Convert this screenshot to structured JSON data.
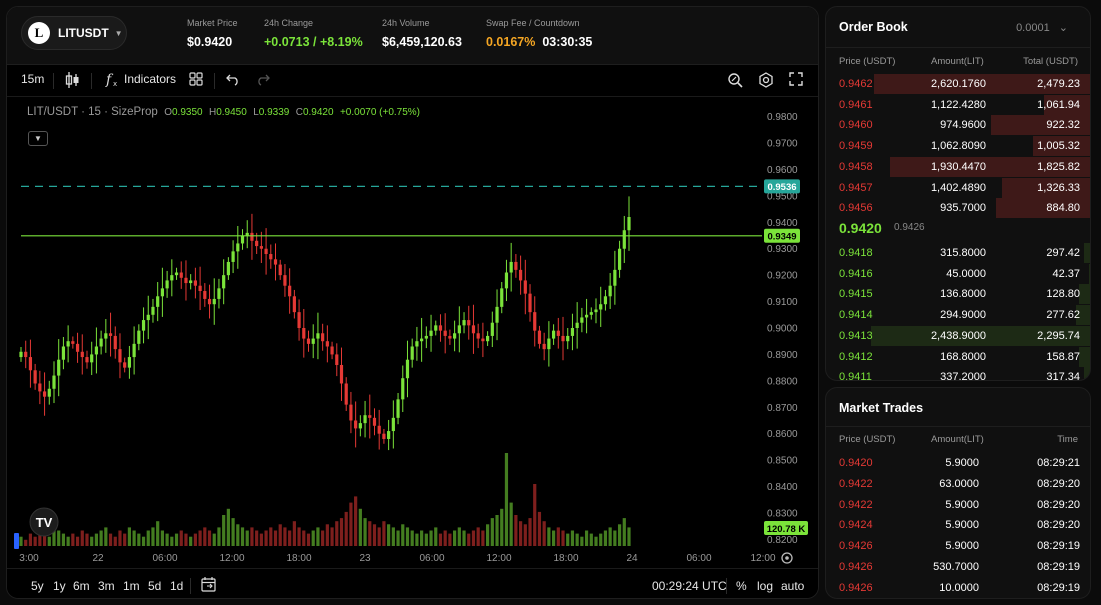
{
  "header": {
    "symbol": "LITUSDT",
    "logo_letter": "L",
    "market_price_label": "Market Price",
    "market_price": "$0.9420",
    "change_label": "24h Change",
    "change_value": "+0.0713 / +8.19%",
    "volume_label": "24h Volume",
    "volume_value": "$6,459,120.63",
    "swap_label": "Swap Fee / Countdown",
    "swap_fee": "0.0167%",
    "countdown": "03:30:35"
  },
  "toolbar": {
    "interval": "15m",
    "indicators_label": "Indicators"
  },
  "legend": {
    "title": "LIT/USDT · 15 · SizeProp",
    "o_label": "O",
    "o_value": "0.9350",
    "h_label": "H",
    "h_value": "0.9450",
    "l_label": "L",
    "l_value": "0.9339",
    "c_label": "C",
    "c_value": "0.9420",
    "change": "+0.0070 (+0.75%)"
  },
  "chart_data": {
    "type": "candlestick",
    "y_ticks": [
      "0.9800",
      "0.9700",
      "0.9600",
      "0.9500",
      "0.9400",
      "0.9300",
      "0.9200",
      "0.9100",
      "0.9000",
      "0.8900",
      "0.8800",
      "0.8700",
      "0.8600",
      "0.8500",
      "0.8400",
      "0.8300",
      "0.8200"
    ],
    "ylim": [
      0.8175,
      0.9825
    ],
    "x_ticks": [
      "3:00",
      "22",
      "06:00",
      "12:00",
      "18:00",
      "23",
      "06:00",
      "12:00",
      "18:00",
      "24",
      "06:00",
      "12:00"
    ],
    "dashed_line_label": "0.9536",
    "dashed_line_value": 0.9536,
    "solid_line_label": "0.9349",
    "solid_line_value": 0.9349,
    "volume_label": "120.78 K",
    "close_series": [
      0.891,
      0.889,
      0.884,
      0.879,
      0.876,
      0.874,
      0.877,
      0.882,
      0.888,
      0.893,
      0.895,
      0.894,
      0.891,
      0.889,
      0.887,
      0.89,
      0.893,
      0.896,
      0.898,
      0.897,
      0.892,
      0.887,
      0.885,
      0.889,
      0.894,
      0.899,
      0.903,
      0.905,
      0.908,
      0.912,
      0.915,
      0.918,
      0.92,
      0.921,
      0.919,
      0.917,
      0.918,
      0.916,
      0.914,
      0.911,
      0.909,
      0.911,
      0.915,
      0.92,
      0.925,
      0.929,
      0.932,
      0.935,
      0.936,
      0.933,
      0.931,
      0.93,
      0.928,
      0.926,
      0.924,
      0.92,
      0.916,
      0.912,
      0.906,
      0.9,
      0.896,
      0.894,
      0.896,
      0.898,
      0.895,
      0.893,
      0.89,
      0.886,
      0.879,
      0.871,
      0.865,
      0.862,
      0.864,
      0.867,
      0.866,
      0.863,
      0.86,
      0.858,
      0.861,
      0.866,
      0.873,
      0.881,
      0.888,
      0.893,
      0.895,
      0.896,
      0.897,
      0.899,
      0.901,
      0.899,
      0.897,
      0.896,
      0.898,
      0.901,
      0.903,
      0.901,
      0.898,
      0.896,
      0.895,
      0.897,
      0.902,
      0.908,
      0.915,
      0.921,
      0.925,
      0.922,
      0.918,
      0.913,
      0.906,
      0.899,
      0.894,
      0.892,
      0.896,
      0.899,
      0.897,
      0.895,
      0.897,
      0.9,
      0.902,
      0.904,
      0.905,
      0.906,
      0.907,
      0.909,
      0.912,
      0.916,
      0.922,
      0.93,
      0.937,
      0.942
    ],
    "volume_series": [
      3,
      2,
      4,
      3,
      5,
      4,
      3,
      6,
      5,
      4,
      3,
      4,
      3,
      5,
      4,
      3,
      4,
      5,
      6,
      4,
      3,
      5,
      4,
      6,
      5,
      4,
      3,
      5,
      6,
      8,
      5,
      4,
      3,
      4,
      5,
      4,
      3,
      4,
      5,
      6,
      5,
      4,
      6,
      10,
      12,
      9,
      7,
      6,
      5,
      6,
      5,
      4,
      5,
      6,
      5,
      7,
      6,
      5,
      8,
      6,
      5,
      4,
      5,
      6,
      5,
      7,
      6,
      8,
      9,
      11,
      14,
      16,
      12,
      9,
      8,
      7,
      6,
      8,
      7,
      6,
      5,
      7,
      6,
      5,
      4,
      5,
      4,
      5,
      6,
      4,
      5,
      4,
      5,
      6,
      5,
      4,
      5,
      6,
      5,
      7,
      9,
      10,
      12,
      30,
      14,
      10,
      8,
      7,
      9,
      20,
      11,
      8,
      6,
      5,
      6,
      5,
      4,
      5,
      4,
      3,
      5,
      4,
      3,
      4,
      5,
      6,
      5,
      7,
      9,
      6
    ]
  },
  "bottom_bar": {
    "ranges": [
      "5y",
      "1y",
      "6m",
      "3m",
      "1m",
      "5d",
      "1d"
    ],
    "time": "00:29:24 UTC",
    "percent": "%",
    "log": "log",
    "auto": "auto"
  },
  "order_book": {
    "title": "Order Book",
    "tick_size": "0.0001",
    "headers": {
      "price": "Price (USDT)",
      "amount": "Amount(LIT)",
      "total": "Total (USDT)"
    },
    "asks": [
      {
        "price": "0.9462",
        "amount": "2,620.1760",
        "total": "2,479.23",
        "depth": 0.82
      },
      {
        "price": "0.9461",
        "amount": "1,122.4280",
        "total": "1,061.94",
        "depth": 0.18
      },
      {
        "price": "0.9460",
        "amount": "974.9600",
        "total": "922.32",
        "depth": 0.38
      },
      {
        "price": "0.9459",
        "amount": "1,062.8090",
        "total": "1,005.32",
        "depth": 0.22
      },
      {
        "price": "0.9458",
        "amount": "1,930.4470",
        "total": "1,825.82",
        "depth": 0.76
      },
      {
        "price": "0.9457",
        "amount": "1,402.4890",
        "total": "1,326.33",
        "depth": 0.34
      },
      {
        "price": "0.9456",
        "amount": "935.7000",
        "total": "884.80",
        "depth": 0.36
      }
    ],
    "mid_price": "0.9420",
    "mark_price": "0.9426",
    "bids": [
      {
        "price": "0.9418",
        "amount": "315.8000",
        "total": "297.42",
        "depth": 0.03
      },
      {
        "price": "0.9416",
        "amount": "45.0000",
        "total": "42.37",
        "depth": 0.01
      },
      {
        "price": "0.9415",
        "amount": "136.8000",
        "total": "128.80",
        "depth": 0.05
      },
      {
        "price": "0.9414",
        "amount": "294.9000",
        "total": "277.62",
        "depth": 0.06
      },
      {
        "price": "0.9413",
        "amount": "2,438.9000",
        "total": "2,295.74",
        "depth": 0.83
      },
      {
        "price": "0.9412",
        "amount": "168.8000",
        "total": "158.87",
        "depth": 0.05
      },
      {
        "price": "0.9411",
        "amount": "337.2000",
        "total": "317.34",
        "depth": 0.03
      }
    ]
  },
  "market_trades": {
    "title": "Market Trades",
    "headers": {
      "price": "Price (USDT)",
      "amount": "Amount(LIT)",
      "time": "Time"
    },
    "rows": [
      {
        "price": "0.9420",
        "amount": "5.9000",
        "time": "08:29:21"
      },
      {
        "price": "0.9422",
        "amount": "63.0000",
        "time": "08:29:20"
      },
      {
        "price": "0.9422",
        "amount": "5.9000",
        "time": "08:29:20"
      },
      {
        "price": "0.9424",
        "amount": "5.9000",
        "time": "08:29:20"
      },
      {
        "price": "0.9426",
        "amount": "5.9000",
        "time": "08:29:19"
      },
      {
        "price": "0.9426",
        "amount": "530.7000",
        "time": "08:29:19"
      },
      {
        "price": "0.9426",
        "amount": "10.0000",
        "time": "08:29:19"
      }
    ]
  },
  "colors": {
    "up": "#7be33a",
    "down": "#e53935",
    "accent_orange": "#f5a623",
    "dashed_line": "#26a69a"
  },
  "icons": [
    "candle-type-icon",
    "function-icon",
    "layout-grid-icon",
    "undo-icon",
    "redo-icon",
    "search-zoom-icon",
    "settings-icon",
    "fullscreen-icon",
    "calendar-goto-icon",
    "tradingview-logo",
    "axis-settings-icon"
  ]
}
